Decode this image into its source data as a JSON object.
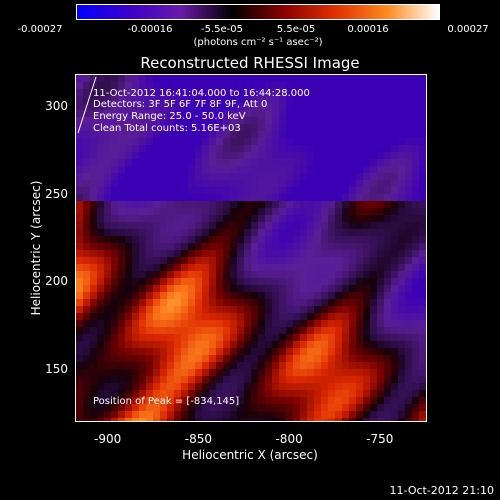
{
  "colorbar": {
    "ticks": [
      "-0.00027",
      "-0.00016",
      "-5.5e-05",
      "5.5e-05",
      "0.00016",
      "0.00027"
    ],
    "unit_label": "(photons cm⁻² s⁻¹ asec⁻²)",
    "colors": [
      "#0000ff",
      "#3a00c8",
      "#6a1aa8",
      "#000000",
      "#8a0000",
      "#e03000",
      "#ff8a20",
      "#ffffff"
    ]
  },
  "title": "Reconstructed RHESSI Image",
  "info": {
    "time": "11-Oct-2012 16:41:04.000 to 16:44:28.000",
    "detectors": "Detectors: 3F 5F 6F 7F 8F 9F, Att 0",
    "energy": "Energy Range: 25.0 - 50.0 keV",
    "clean": "Clean    Total counts: 5.16E+03"
  },
  "peak_label": "Position of Peak = [-834,145]",
  "axes": {
    "xlabel": "Heliocentric X (arcsec)",
    "ylabel": "Heliocentric Y (arcsec)",
    "xticks": [
      "-900",
      "-850",
      "-800",
      "-750"
    ],
    "yticks": [
      "300",
      "250",
      "200",
      "150"
    ]
  },
  "timestamp": "11-Oct-2012 21:10",
  "chart_data": {
    "type": "heatmap",
    "title": "Reconstructed RHESSI Image",
    "xlabel": "Heliocentric X (arcsec)",
    "ylabel": "Heliocentric Y (arcsec)",
    "xlim": [
      -918,
      -724
    ],
    "ylim": [
      120,
      318
    ],
    "x_ticks": [
      -900,
      -850,
      -800,
      -750
    ],
    "y_ticks": [
      150,
      200,
      250,
      300
    ],
    "colorbar_range": [
      -0.00027,
      0.00027
    ],
    "peak_position": [
      -834,
      145
    ]
  }
}
